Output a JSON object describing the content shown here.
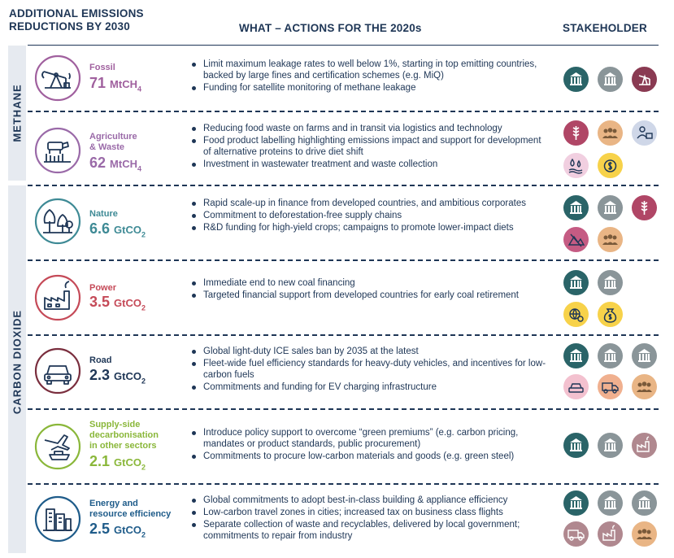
{
  "header": {
    "col1_line1": "ADDITIONAL EMISSIONS",
    "col1_line2": "REDUCTIONS BY 2030",
    "col2": "WHAT – ACTIONS FOR THE 2020s",
    "col3": "STAKEHOLDER"
  },
  "groups": {
    "methane": "METHANE",
    "co2": "CARBON DIOXIDE"
  },
  "colors": {
    "navy": "#1e3656",
    "fossil": "#a0609e",
    "agri": "#9a6aa8",
    "nature": "#3e8a95",
    "power": "#c54a58",
    "road": "#7a2e3e",
    "supply": "#8ab73a",
    "energy": "#1f5c8a"
  },
  "rows": [
    {
      "id": "fossil",
      "name": "Fossil",
      "value": "71",
      "unit": "MtCH",
      "sub": "4",
      "icon": "oil-pump-icon",
      "actions": [
        "Limit maximum leakage rates to well below 1%, starting in top emitting countries, backed by large fines and certification schemes (e.g. MiQ)",
        "Funding for satellite monitoring of methane leakage"
      ],
      "stakeholders": [
        "government",
        "public-finance",
        "oil-gas-industry"
      ]
    },
    {
      "id": "agri",
      "name": "Agriculture",
      "name2": "& Waste",
      "value": "62",
      "unit": "MtCH",
      "sub": "4",
      "icon": "cow-crops-icon",
      "actions": [
        "Reducing food waste on farms and in transit via logistics and technology",
        "Food product labelling highlighting emissions impact and support for development of alternative proteins to drive diet shift",
        "Investment in wastewater treatment and waste collection"
      ],
      "stakeholders": [
        "agriculture",
        "consumers",
        "food-companies",
        "water-utilities",
        "private-finance"
      ]
    },
    {
      "id": "nature",
      "name": "Nature",
      "value": "6.6",
      "unit": "GtCO",
      "sub": "2",
      "icon": "trees-icon",
      "actions": [
        "Rapid scale-up in finance from developed countries, and ambitious corporates",
        "Commitment to deforestation-free supply chains",
        "R&D funding for high-yield crops; campaigns to promote lower-impact diets"
      ],
      "stakeholders": [
        "government",
        "public-finance",
        "agriculture",
        "land-use",
        "consumers"
      ]
    },
    {
      "id": "power",
      "name": "Power",
      "value": "3.5",
      "unit": "GtCO",
      "sub": "2",
      "icon": "factory-icon",
      "actions": [
        "Immediate end to new coal financing",
        "Targeted financial support from developed countries for early coal retirement"
      ],
      "stakeholders": [
        "government",
        "public-finance",
        "finance-globe",
        "private-finance"
      ]
    },
    {
      "id": "road",
      "name": "Road",
      "value": "2.3",
      "unit": "GtCO",
      "sub": "2",
      "icon": "car-icon",
      "actions": [
        "Global light-duty ICE sales ban by 2035 at the latest",
        "Fleet-wide fuel efficiency standards for heavy-duty vehicles, and incentives for low-carbon fuels",
        "Commitments and funding for EV charging infrastructure"
      ],
      "stakeholders": [
        "government",
        "public-finance",
        "public-finance",
        "automakers",
        "truck-fleets",
        "consumers"
      ]
    },
    {
      "id": "supply",
      "name": "Supply-side",
      "name2": "decarbonisation",
      "name3": "in other sectors",
      "value": "2.1",
      "unit": "GtCO",
      "sub": "2",
      "icon": "plane-ship-icon",
      "actions": [
        "Introduce policy support to overcome “green premiums” (e.g. carbon pricing, mandates or product standards, public procurement)",
        "Commitments to procure low-carbon materials and goods (e.g. green steel)"
      ],
      "stakeholders": [
        "government",
        "public-finance",
        "heavy-industry"
      ]
    },
    {
      "id": "energy",
      "name": "Energy and",
      "name2": "resource efficiency",
      "value": "2.5",
      "unit": "GtCO",
      "sub": "2",
      "icon": "buildings-icon",
      "actions": [
        "Global commitments to adopt best-in-class building & appliance efficiency",
        "Low-carbon travel zones in cities; increased tax on business class flights",
        "Separate collection of waste and recyclables, delivered by local government; commitments to repair from industry"
      ],
      "stakeholders": [
        "government",
        "public-finance",
        "public-finance",
        "truck-fleets",
        "heavy-industry",
        "consumers"
      ]
    }
  ]
}
